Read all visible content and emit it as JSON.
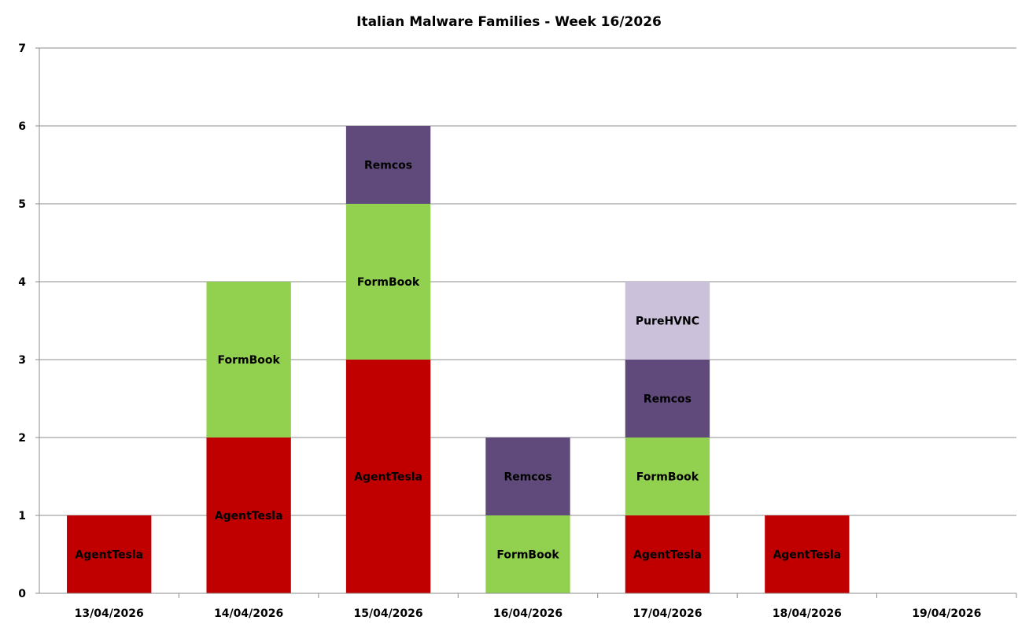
{
  "chart_data": {
    "type": "bar",
    "stacked": true,
    "title": "Italian Malware Families - Week 16/2026",
    "xlabel": "",
    "ylabel": "",
    "ylim": [
      0,
      7
    ],
    "yticks": [
      0,
      1,
      2,
      3,
      4,
      5,
      6,
      7
    ],
    "grid": true,
    "legend": "none",
    "data_labels": "series name",
    "categories": [
      "13/04/2026",
      "14/04/2026",
      "15/04/2026",
      "16/04/2026",
      "17/04/2026",
      "18/04/2026",
      "19/04/2026"
    ],
    "series": [
      {
        "name": "AgentTesla",
        "color": "#C00000",
        "values": [
          1,
          2,
          3,
          0,
          1,
          1,
          0
        ]
      },
      {
        "name": "FormBook",
        "color": "#92D050",
        "values": [
          0,
          2,
          2,
          1,
          1,
          0,
          0
        ]
      },
      {
        "name": "Remcos",
        "color": "#604A7B",
        "values": [
          0,
          0,
          1,
          1,
          1,
          0,
          0
        ]
      },
      {
        "name": "PureHVNC",
        "color": "#CCC1DA",
        "values": [
          0,
          0,
          0,
          0,
          1,
          0,
          0
        ]
      }
    ]
  }
}
